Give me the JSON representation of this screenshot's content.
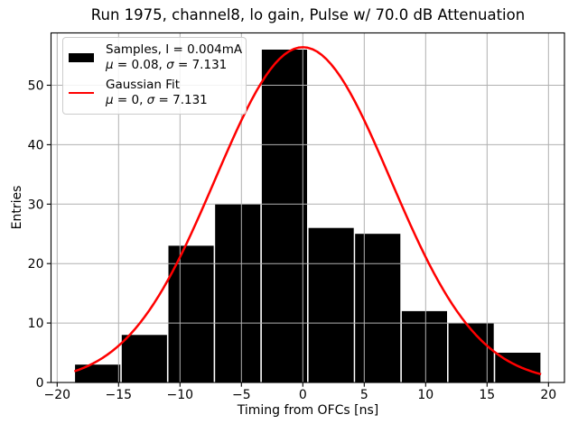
{
  "chart_data": {
    "type": "bar",
    "subtype": "histogram-with-gaussian-fit",
    "title": "Run 1975, channel8, lo gain, Pulse w/ 70.0 dB Attenuation",
    "xlabel": "Timing from OFCs [ns]",
    "ylabel": "Entries",
    "xlim": [
      -20.5,
      21.3
    ],
    "ylim": [
      0,
      58.8
    ],
    "xticks": [
      -20,
      -15,
      -10,
      -5,
      0,
      5,
      10,
      15,
      20
    ],
    "yticks": [
      0,
      10,
      20,
      30,
      40,
      50
    ],
    "grid": true,
    "grid_color": "#b0b0b0",
    "bar_color": "#000000",
    "bin_edges": [
      -18.6,
      -14.8,
      -11.0,
      -7.2,
      -3.4,
      0.4,
      4.2,
      8.0,
      11.8,
      15.6,
      19.4
    ],
    "counts": [
      3,
      8,
      23,
      30,
      56,
      26,
      25,
      12,
      10,
      5
    ],
    "gaussian_fit": {
      "mu": 0,
      "sigma": 7.131,
      "amplitude": 56.4,
      "x_range": [
        -18.6,
        19.4
      ],
      "color": "#ff0000",
      "line_width": 2.5
    },
    "legend_position": "upper-left"
  },
  "legend": {
    "entries": [
      {
        "swatch": "black-box",
        "label": "Samples, I = 0.004mA",
        "mu_symbol": "μ",
        "mu_text": " = 0.08, ",
        "sigma_symbol": "σ",
        "sigma_text": " = 7.131"
      },
      {
        "swatch": "red-line",
        "label": "Gaussian Fit",
        "mu_symbol": "μ",
        "mu_text": " = 0, ",
        "sigma_symbol": "σ",
        "sigma_text": " = 7.131"
      }
    ]
  }
}
